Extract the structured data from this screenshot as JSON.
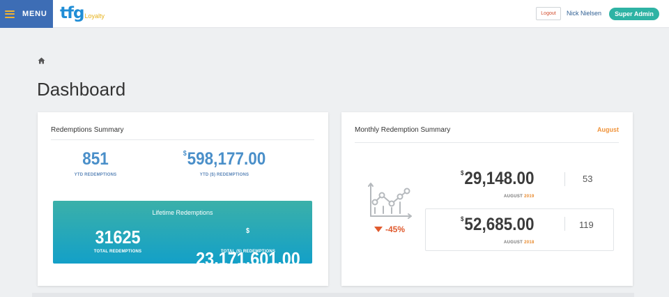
{
  "header": {
    "menu_label": "MENU",
    "logo_main": "tfg",
    "logo_sub": "Loyalty",
    "logout_label": "Logout",
    "user_name": "Nick Nielsen",
    "role": "Super Admin"
  },
  "page": {
    "title": "Dashboard"
  },
  "redemptions_summary": {
    "heading": "Redemptions Summary",
    "ytd_count": "851",
    "ytd_count_label": "YTD REDEMPTIONS",
    "currency_symbol": "$",
    "ytd_amount": "598,177.00",
    "ytd_amount_label": "YTD ($) REDEMPTIONS",
    "lifetime": {
      "title": "Lifetime Redemptions",
      "total_count": "31625",
      "total_count_label": "TOTAL REDEMPTIONS",
      "currency_symbol": "$",
      "total_amount": "23,171,601.00",
      "total_amount_label": "TOTAL ($) REDEMPTIONS"
    }
  },
  "monthly_summary": {
    "heading": "Monthly Redemption Summary",
    "month": "August",
    "change_percent": "-45%",
    "current": {
      "currency_symbol": "$",
      "amount": "29,148.00",
      "month_label": "AUGUST",
      "year": "2019",
      "count": "53"
    },
    "previous": {
      "currency_symbol": "$",
      "amount": "52,685.00",
      "month_label": "AUGUST",
      "year": "2018",
      "count": "119"
    }
  },
  "colors": {
    "menu_bg": "#3d6db5",
    "accent_teal": "#2eb3a4",
    "stat_blue": "#4a8fc9",
    "orange": "#f0933a",
    "decrease_red": "#e05a2e"
  }
}
